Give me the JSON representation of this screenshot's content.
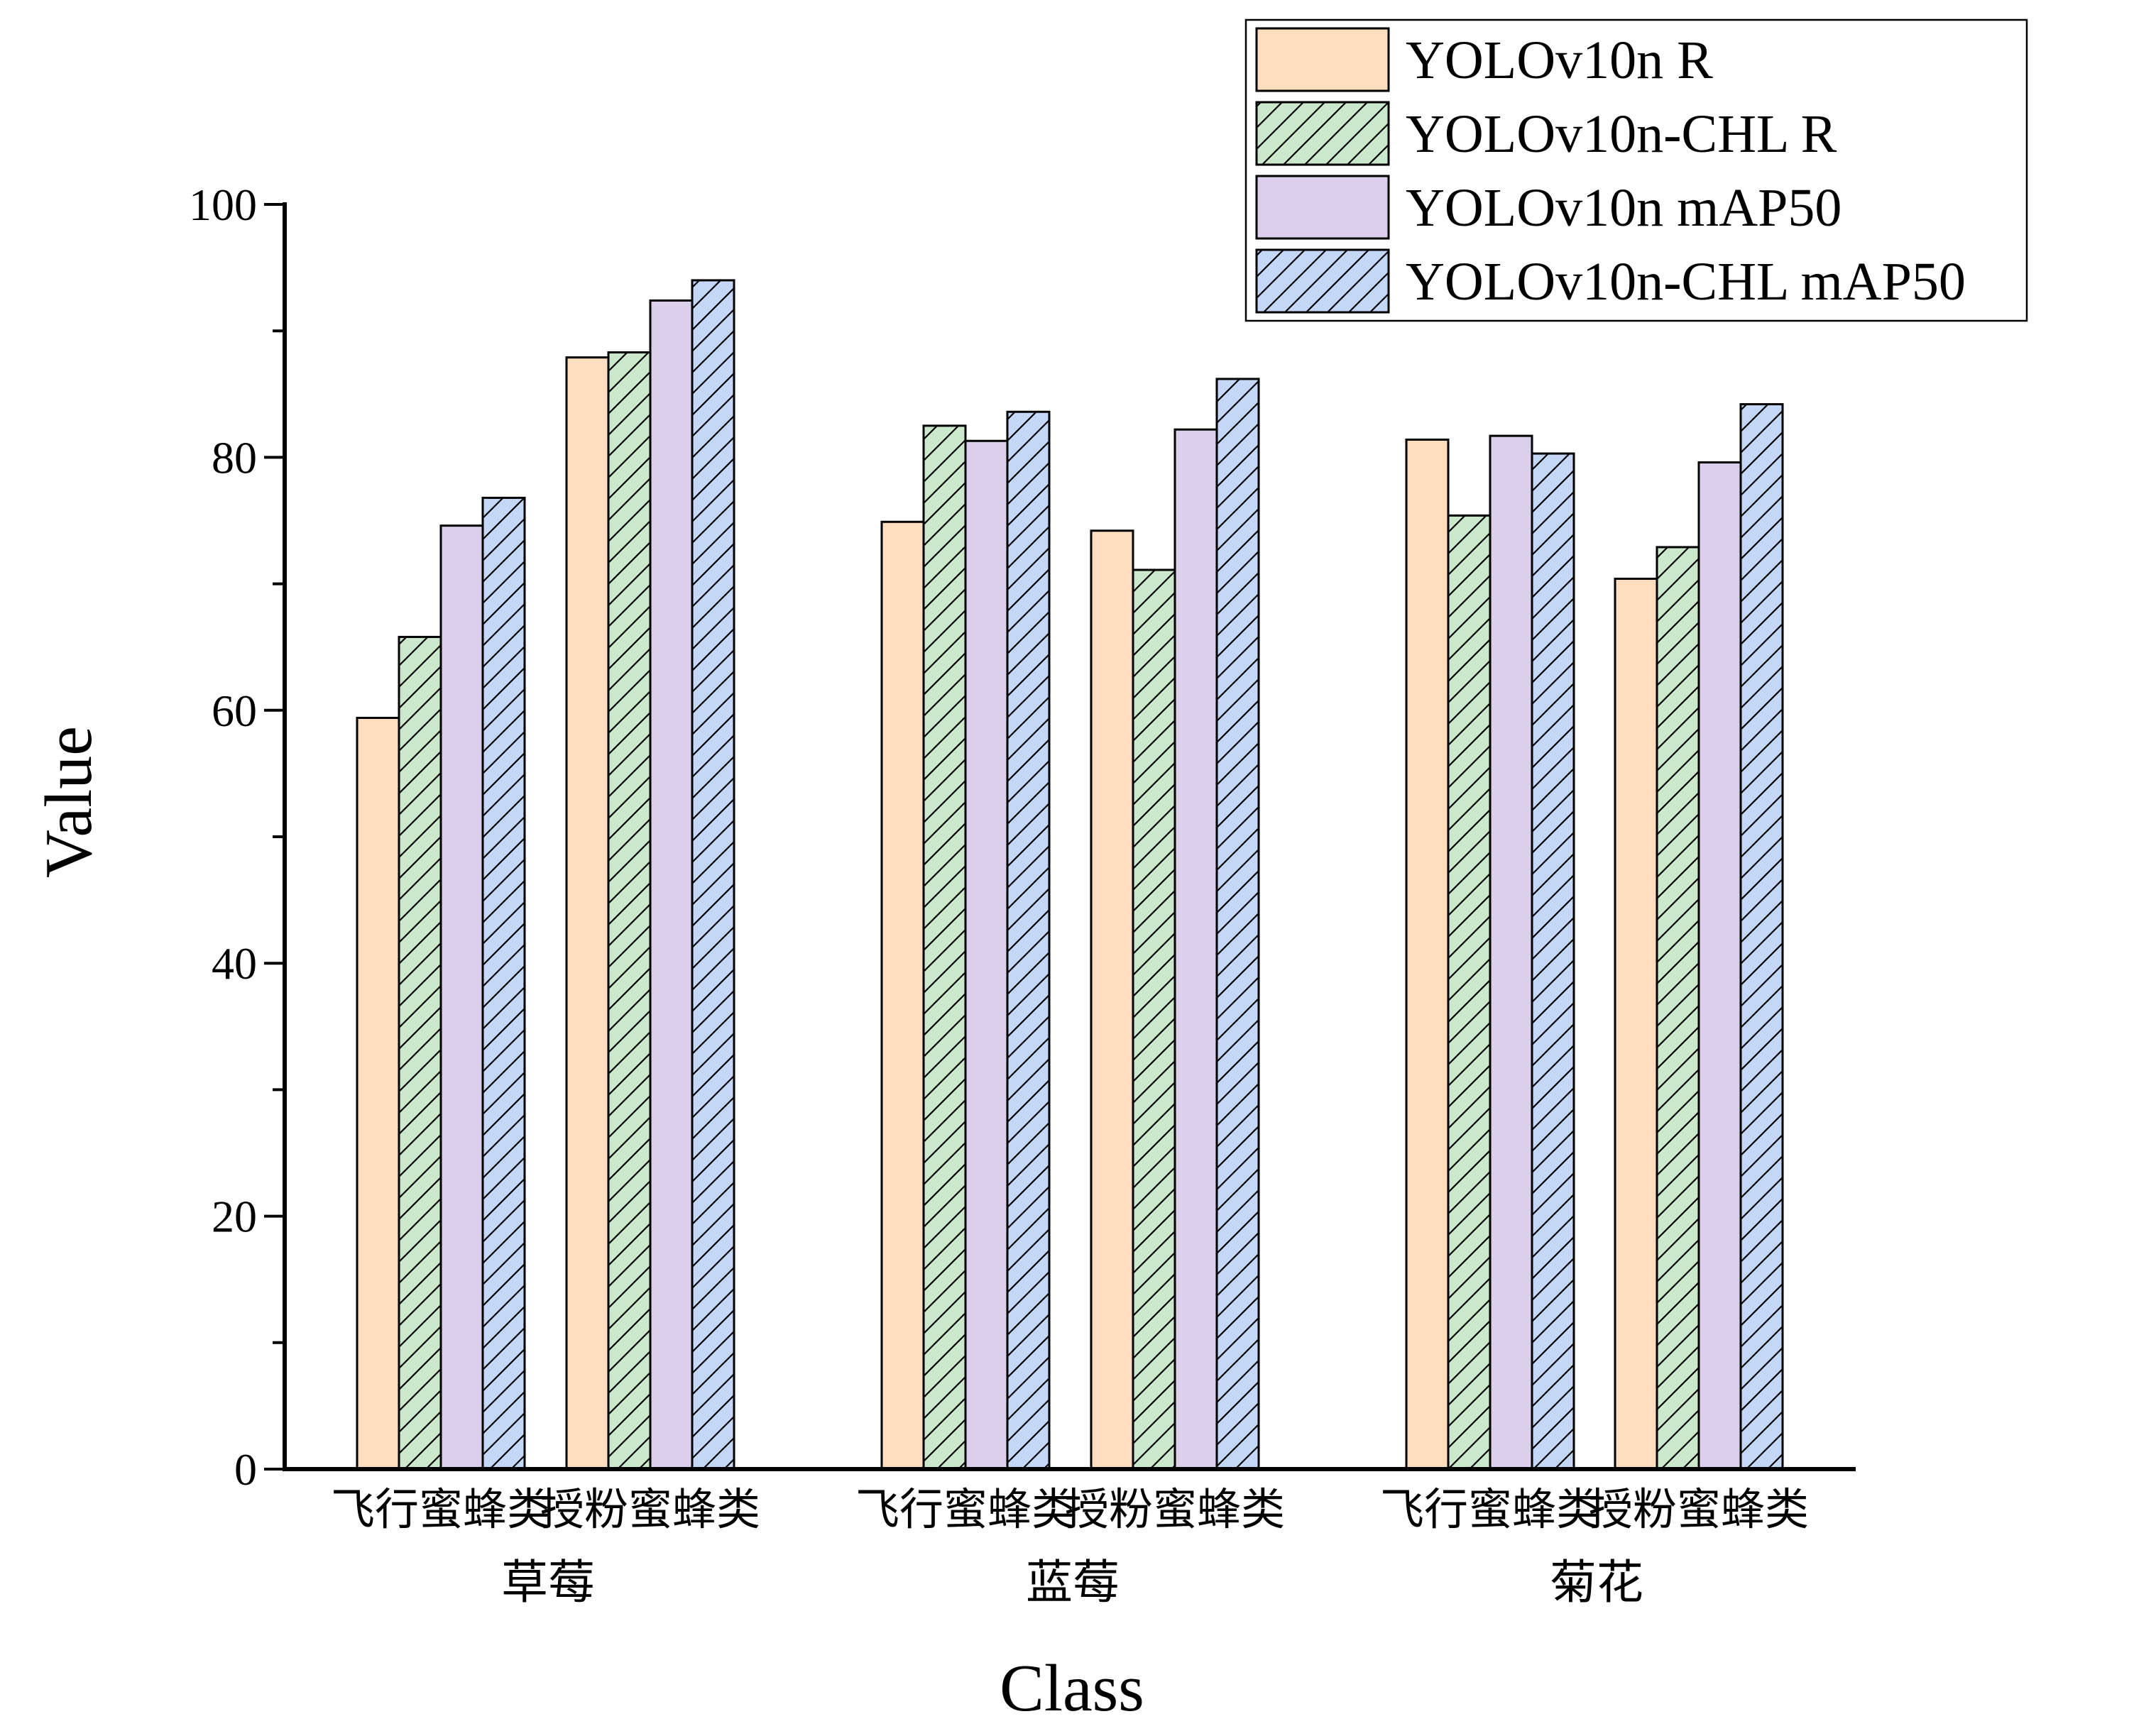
{
  "chart_data": {
    "type": "bar",
    "title": "",
    "xlabel": "Class",
    "ylabel": "Value",
    "ylim": [
      0,
      100
    ],
    "yticks": [
      0,
      20,
      40,
      60,
      80,
      100
    ],
    "grid": false,
    "legend_position": "top-right",
    "groups": [
      {
        "name": "草莓",
        "categories": [
          "飞行蜜蜂类",
          "授粉蜜蜂类"
        ]
      },
      {
        "name": "蓝莓",
        "categories": [
          "飞行蜜蜂类",
          "授粉蜜蜂类"
        ]
      },
      {
        "name": "菊花",
        "categories": [
          "飞行蜜蜂类",
          "授粉蜜蜂类"
        ]
      }
    ],
    "categories": [
      "飞行蜜蜂类",
      "授粉蜜蜂类",
      "飞行蜜蜂类",
      "授粉蜜蜂类",
      "飞行蜜蜂类",
      "授粉蜜蜂类"
    ],
    "series": [
      {
        "name": "YOLOv10n R",
        "color": "#FFDDBF",
        "hatched": false,
        "values": [
          59.4,
          87.9,
          74.9,
          74.2,
          81.4,
          70.4
        ]
      },
      {
        "name": "YOLOv10n-CHL R",
        "color": "#CCE8CC",
        "hatched": true,
        "values": [
          65.8,
          88.3,
          82.5,
          71.1,
          75.4,
          72.9
        ]
      },
      {
        "name": "YOLOv10n mAP50",
        "color": "#DCCFEB",
        "hatched": false,
        "values": [
          74.6,
          92.4,
          81.3,
          82.2,
          81.7,
          79.6
        ]
      },
      {
        "name": "YOLOv10n-CHL mAP50",
        "color": "#C5D7F7",
        "hatched": true,
        "values": [
          76.8,
          94.0,
          83.6,
          86.2,
          80.3,
          84.2
        ]
      }
    ]
  }
}
